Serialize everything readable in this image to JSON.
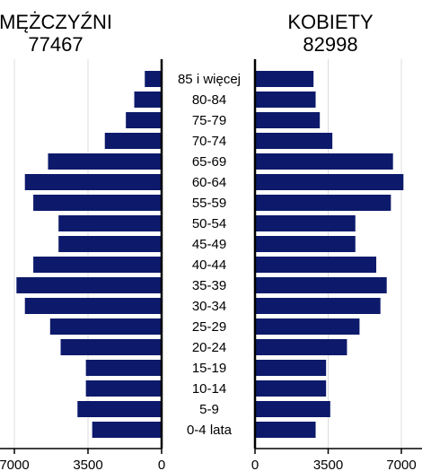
{
  "chart_data": {
    "type": "bar",
    "subtype": "population-pyramid",
    "categories": [
      "85 i więcej",
      "80-84",
      "75-79",
      "70-74",
      "65-69",
      "60-64",
      "55-59",
      "50-54",
      "45-49",
      "40-44",
      "35-39",
      "30-34",
      "25-29",
      "20-24",
      "15-19",
      "10-14",
      "5-9",
      "0-4 lata"
    ],
    "series": [
      {
        "name": "MĘŻCZYŹNI",
        "total": "77467",
        "values": [
          800,
          1300,
          1700,
          2700,
          5400,
          6500,
          6100,
          4900,
          4900,
          6100,
          6900,
          6500,
          5300,
          4800,
          3600,
          3600,
          4000,
          3300
        ]
      },
      {
        "name": "KOBIETY",
        "total": "82998",
        "values": [
          2800,
          2900,
          3100,
          3700,
          6600,
          7100,
          6500,
          4800,
          4800,
          5800,
          6300,
          6000,
          5000,
          4400,
          3400,
          3400,
          3600,
          2900
        ]
      }
    ],
    "ticks": {
      "left": [
        "7000",
        "3500",
        "0"
      ],
      "right": [
        "0",
        "3500",
        "7000"
      ]
    },
    "xlim": [
      0,
      7000
    ],
    "grid": true,
    "bar_color": "#0d1a6b"
  }
}
